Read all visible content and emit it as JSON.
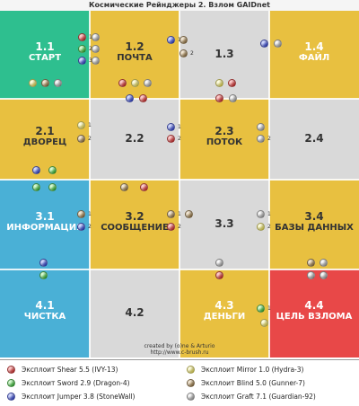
{
  "title": "Космические Рейнджеры 2. Взлом GAIDnet",
  "credits": [
    "created by (o)ne & Arturio",
    "http://www.c-brush.ru"
  ],
  "colors": {
    "green": "#2ebf8f",
    "yellow": "#e8c040",
    "gray": "#d9d9d9",
    "blue": "#4ab0d6",
    "red": "#e84848",
    "lightyellow": "#f0e070"
  },
  "cells": [
    {
      "num": "1.1",
      "name": "СТАРТ"
    },
    {
      "num": "1.2",
      "name": "ПОЧТА"
    },
    {
      "num": "1.3",
      "name": ""
    },
    {
      "num": "1.4",
      "name": "ФАЙЛ"
    },
    {
      "num": "2.1",
      "name": "ДВОРЕЦ"
    },
    {
      "num": "2.2",
      "name": ""
    },
    {
      "num": "2.3",
      "name": "ПОТОК"
    },
    {
      "num": "2.4",
      "name": ""
    },
    {
      "num": "3.1",
      "name": "ИНФОРМАЦИЯ"
    },
    {
      "num": "3.2",
      "name": "СООБЩЕНИЕ"
    },
    {
      "num": "3.3",
      "name": ""
    },
    {
      "num": "3.4",
      "name": "БАЗЫ ДАННЫХ"
    },
    {
      "num": "4.1",
      "name": "ЧИСТКА"
    },
    {
      "num": "4.2",
      "name": ""
    },
    {
      "num": "4.3",
      "name": "ДЕНЬГИ"
    },
    {
      "num": "4.4",
      "name": "ЦЕЛЬ ВЗЛОМА"
    }
  ],
  "dot_labels": {
    "one": "1",
    "two": "2",
    "three": "3"
  },
  "legend": [
    {
      "color": "red",
      "text": "Эксплоит Shear 5.5 (IVY-13)"
    },
    {
      "color": "green",
      "text": "Эксплоит Sword 2.9 (Dragon-4)"
    },
    {
      "color": "blue",
      "text": "Эксплоит Jumper 3.8 (StoneWall)"
    },
    {
      "color": "yellow",
      "text": "Эксплоит Mirror 1.0 (Hydra-3)"
    },
    {
      "color": "brown",
      "text": "Эксплоит Blind 5.0 (Gunner-7)"
    },
    {
      "color": "gray",
      "text": "Эксплоит Graft 7.1 (Guardian-92)"
    }
  ]
}
